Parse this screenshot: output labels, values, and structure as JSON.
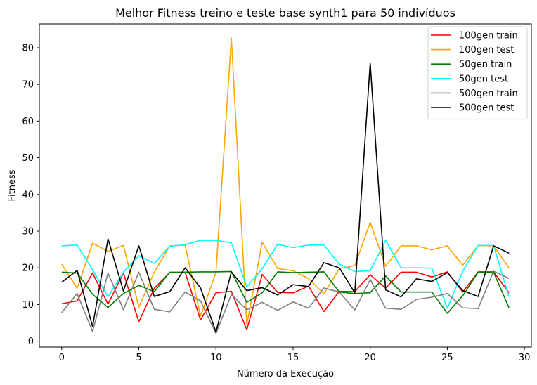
{
  "chart_data": {
    "type": "line",
    "title": "Melhor Fitness treino e teste base synth1 para 50 indivíduos",
    "xlabel": "Número da Execução",
    "ylabel": "Fitness",
    "xlim": [
      -1.45,
      30.45
    ],
    "ylim": [
      -1.6,
      86.5
    ],
    "xticks": [
      0,
      5,
      10,
      15,
      20,
      25,
      30
    ],
    "yticks": [
      0,
      10,
      20,
      30,
      40,
      50,
      60,
      70,
      80
    ],
    "grid": false,
    "legend_position": "top-right",
    "x": [
      0,
      1,
      2,
      3,
      4,
      5,
      6,
      7,
      8,
      9,
      10,
      11,
      12,
      13,
      14,
      15,
      16,
      17,
      18,
      19,
      20,
      21,
      22,
      23,
      24,
      25,
      26,
      27,
      28,
      29
    ],
    "series": [
      {
        "name": "100gen train",
        "color": "#ff0000",
        "values": [
          10.2,
          11.0,
          18.6,
          10.1,
          18.6,
          5.3,
          14.4,
          18.7,
          18.8,
          5.8,
          13.2,
          13.6,
          3.1,
          18.2,
          13.3,
          13.2,
          15.0,
          8.1,
          13.6,
          13.5,
          18.1,
          14.5,
          18.8,
          18.8,
          17.5,
          18.9,
          13.4,
          18.9,
          18.9,
          13.2
        ]
      },
      {
        "name": "100gen test",
        "color": "#ffa500",
        "values": [
          21.0,
          14.4,
          26.7,
          24.5,
          26.1,
          9.3,
          18.8,
          26.0,
          26.2,
          6.8,
          18.8,
          82.6,
          4.5,
          27.0,
          19.8,
          19.2,
          17.1,
          12.9,
          19.8,
          20.6,
          32.4,
          20.4,
          26.0,
          26.0,
          24.9,
          26.0,
          20.7,
          26.1,
          26.0,
          20.0
        ]
      },
      {
        "name": "50gen train",
        "color": "#008000",
        "values": [
          18.8,
          18.6,
          12.8,
          9.2,
          13.0,
          15.2,
          13.5,
          18.8,
          18.8,
          18.9,
          18.9,
          19.0,
          10.6,
          13.2,
          18.9,
          18.7,
          18.8,
          18.9,
          13.4,
          13.0,
          13.2,
          17.8,
          13.4,
          13.4,
          13.4,
          7.6,
          12.4,
          18.8,
          18.8,
          9.1
        ]
      },
      {
        "name": "50gen test",
        "color": "#00ffff",
        "values": [
          26.0,
          26.2,
          19.5,
          12.1,
          18.8,
          23.3,
          21.2,
          25.9,
          26.3,
          27.5,
          27.5,
          26.8,
          14.8,
          19.8,
          26.4,
          25.5,
          26.2,
          26.2,
          21.0,
          19.0,
          19.2,
          27.5,
          20.0,
          20.0,
          19.9,
          9.0,
          19.1,
          26.1,
          26.1,
          12.1
        ]
      },
      {
        "name": "500gen train",
        "color": "#808080",
        "values": [
          7.8,
          13.0,
          2.6,
          18.6,
          8.6,
          18.8,
          8.7,
          8.0,
          13.4,
          11.0,
          2.1,
          12.7,
          8.6,
          10.6,
          8.4,
          10.7,
          9.0,
          14.5,
          13.4,
          8.5,
          16.8,
          9.0,
          8.7,
          11.4,
          12.0,
          13.0,
          9.1,
          8.9,
          19.1,
          17.1
        ]
      },
      {
        "name": "500gen test",
        "color": "#000000",
        "values": [
          16.1,
          19.3,
          4.0,
          27.9,
          13.7,
          26.0,
          12.2,
          13.5,
          20.0,
          14.5,
          2.5,
          18.9,
          13.8,
          14.6,
          12.6,
          15.4,
          14.9,
          21.4,
          20.0,
          13.2,
          75.8,
          14.0,
          12.1,
          17.0,
          16.3,
          18.7,
          13.8,
          12.2,
          26.0,
          24.0
        ]
      }
    ]
  }
}
